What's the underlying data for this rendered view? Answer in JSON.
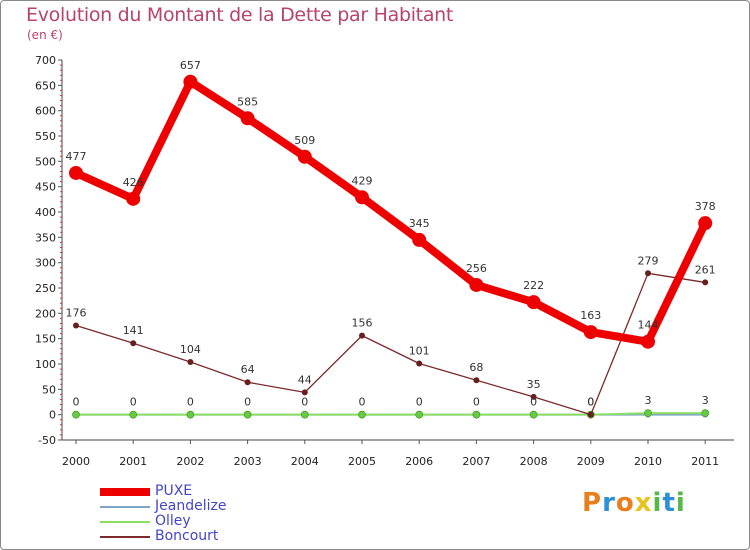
{
  "title": "Evolution du Montant de la Dette par Habitant",
  "unit_label": "(en €)",
  "logo": {
    "text": "Proxiti",
    "letters": [
      {
        "ch": "P",
        "color": "#e87f1e"
      },
      {
        "ch": "r",
        "color": "#2e8fd6"
      },
      {
        "ch": "o",
        "color": "#e87f1e"
      },
      {
        "ch": "x",
        "color": "#e8c21e"
      },
      {
        "ch": "i",
        "color": "#56b847"
      },
      {
        "ch": "t",
        "color": "#2e8fd6"
      },
      {
        "ch": "i",
        "color": "#56b847"
      }
    ]
  },
  "chart_data": {
    "type": "line",
    "title": "Evolution du Montant de la Dette par Habitant",
    "ylabel": "(en €)",
    "x": [
      "2000",
      "2001",
      "2002",
      "2003",
      "2004",
      "2005",
      "2006",
      "2007",
      "2008",
      "2009",
      "2010",
      "2011"
    ],
    "ylim": [
      -50,
      700
    ],
    "yticks": [
      -50,
      0,
      50,
      100,
      150,
      200,
      250,
      300,
      350,
      400,
      450,
      500,
      550,
      600,
      650,
      700
    ],
    "grid": false,
    "legend_position": "bottom-left",
    "series": [
      {
        "name": "PUXE",
        "color": "#ee0000",
        "values": [
          477,
          426,
          657,
          585,
          509,
          429,
          345,
          256,
          222,
          163,
          144,
          378
        ],
        "labels": [
          "477",
          "426",
          "657",
          "585",
          "509",
          "429",
          "345",
          "256",
          "222",
          "163",
          "144",
          "378"
        ]
      },
      {
        "name": "Jeandelize",
        "color": "#7ea6c8",
        "values": [
          0,
          0,
          0,
          0,
          0,
          0,
          0,
          0,
          0,
          0,
          0,
          0
        ],
        "labels": []
      },
      {
        "name": "Olley",
        "color": "#8ede66",
        "values": [
          0,
          0,
          0,
          0,
          0,
          0,
          0,
          0,
          0,
          0,
          3,
          3
        ],
        "labels": [
          "0",
          "0",
          "0",
          "0",
          "0",
          "0",
          "0",
          "0",
          "0",
          "0",
          "3",
          "3"
        ]
      },
      {
        "name": "Boncourt",
        "color": "#7a2b2b",
        "values": [
          176,
          141,
          104,
          64,
          44,
          156,
          101,
          68,
          35,
          0,
          279,
          261
        ],
        "labels": [
          "176",
          "141",
          "104",
          "64",
          "44",
          "156",
          "101",
          "68",
          "35",
          "0",
          "279",
          "261"
        ]
      }
    ]
  }
}
